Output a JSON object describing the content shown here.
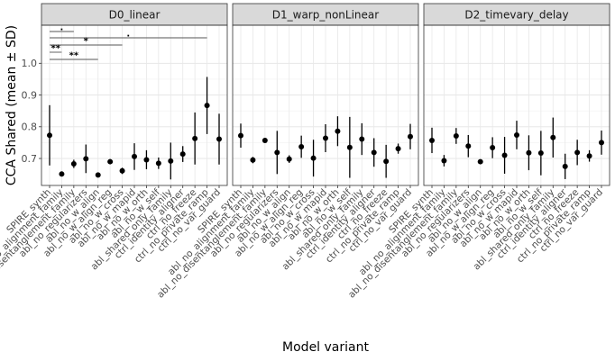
{
  "chart_data": {
    "type": "scatter",
    "title": "",
    "xlabel": "Model variant",
    "ylabel": "CCA Shared (mean ± SD)",
    "ylim": [
      0.615,
      1.12
    ],
    "yticks": [
      0.7,
      0.8,
      0.9,
      1.0
    ],
    "ytick_labels": [
      "0.7",
      "0.8",
      "0.9",
      "1.0"
    ],
    "grid": true,
    "categories": [
      "SPIRE_synth",
      "abl_no_alignment_family",
      "abl_no_disentanglement_family",
      "abl_no_regularizers",
      "abl_no_w_align",
      "abl_no_w_align_reg",
      "abl_no_w_cross",
      "abl_no_w_mapid",
      "abl_no_w_orth",
      "abl_no_w_self",
      "abl_shared_only_family",
      "ctrl_identity_aligner",
      "ctrl_no_freeze",
      "ctrl_no_private_ramp",
      "ctrl_no_var_guard"
    ],
    "panels": [
      {
        "name": "D0_linear",
        "mean": [
          0.773,
          0.651,
          0.683,
          0.699,
          0.648,
          0.69,
          0.661,
          0.706,
          0.696,
          0.685,
          0.692,
          0.714,
          0.763,
          0.867,
          0.761
        ],
        "sd": [
          0.095,
          0.0,
          0.013,
          0.045,
          0.0,
          0.008,
          0.01,
          0.042,
          0.03,
          0.018,
          0.058,
          0.025,
          0.082,
          0.09,
          0.08
        ]
      },
      {
        "name": "D1_warp_nonLinear",
        "mean": [
          0.772,
          0.695,
          0.757,
          0.719,
          0.698,
          0.737,
          0.701,
          0.764,
          0.786,
          0.735,
          0.761,
          0.719,
          0.691,
          0.731,
          0.769
        ],
        "sd": [
          0.038,
          0.01,
          0.0,
          0.068,
          0.012,
          0.035,
          0.058,
          0.044,
          0.047,
          0.096,
          0.05,
          0.045,
          0.052,
          0.016,
          0.04
        ]
      },
      {
        "name": "D2_timevary_delay",
        "mean": [
          0.757,
          0.693,
          0.771,
          0.739,
          0.69,
          0.734,
          0.71,
          0.774,
          0.718,
          0.717,
          0.766,
          0.675,
          0.719,
          0.708,
          0.75
        ],
        "sd": [
          0.04,
          0.018,
          0.025,
          0.035,
          0.0,
          0.033,
          0.058,
          0.045,
          0.055,
          0.07,
          0.063,
          0.04,
          0.04,
          0.018,
          0.038
        ]
      }
    ],
    "annotations": [
      {
        "panel": "D0_linear",
        "from": "SPIRE_synth",
        "to": "abl_no_disentanglement_family",
        "label": "."
      },
      {
        "panel": "D0_linear",
        "from": "SPIRE_synth",
        "to": "ctrl_no_private_ramp",
        "label": "."
      },
      {
        "panel": "D0_linear",
        "from": "SPIRE_synth",
        "to": "abl_no_w_cross",
        "label": "*"
      },
      {
        "panel": "D0_linear",
        "from": "SPIRE_synth",
        "to": "abl_no_alignment_family",
        "label": "**"
      },
      {
        "panel": "D0_linear",
        "from": "SPIRE_synth",
        "to": "abl_no_w_align",
        "label": "**"
      }
    ]
  }
}
